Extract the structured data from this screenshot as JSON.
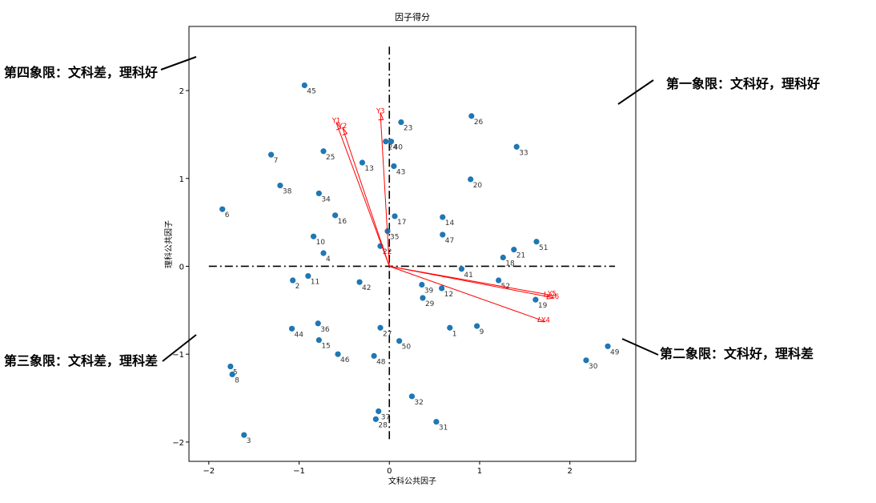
{
  "chart_data": {
    "type": "scatter",
    "title": "因子得分",
    "xlabel": "文科公共因子",
    "ylabel": "理科公共因子",
    "xlim": [
      -2.22,
      2.73
    ],
    "ylim": [
      -2.22,
      2.73
    ],
    "xticks": [
      -2,
      -1,
      0,
      1,
      2
    ],
    "yticks": [
      -2,
      -1,
      0,
      1,
      2
    ],
    "tick_labels": [
      "−2",
      "−1",
      "0",
      "1",
      "2"
    ],
    "point_color": "#1f77b4",
    "axis_color": "#000000",
    "points": [
      {
        "label": "1",
        "x": 0.67,
        "y": -0.7
      },
      {
        "label": "2",
        "x": -1.07,
        "y": -0.16
      },
      {
        "label": "3",
        "x": -1.61,
        "y": -1.92
      },
      {
        "label": "4",
        "x": -0.73,
        "y": 0.15
      },
      {
        "label": "5",
        "x": -1.76,
        "y": -1.14
      },
      {
        "label": "6",
        "x": -1.85,
        "y": 0.65
      },
      {
        "label": "7",
        "x": -1.31,
        "y": 1.27
      },
      {
        "label": "8",
        "x": -1.74,
        "y": -1.23
      },
      {
        "label": "9",
        "x": 0.97,
        "y": -0.68
      },
      {
        "label": "10",
        "x": -0.84,
        "y": 0.34
      },
      {
        "label": "11",
        "x": -0.9,
        "y": -0.11
      },
      {
        "label": "12",
        "x": 0.58,
        "y": -0.25
      },
      {
        "label": "13",
        "x": -0.3,
        "y": 1.18
      },
      {
        "label": "14",
        "x": 0.59,
        "y": 0.56
      },
      {
        "label": "15",
        "x": -0.78,
        "y": -0.84
      },
      {
        "label": "16",
        "x": -0.6,
        "y": 0.58
      },
      {
        "label": "17",
        "x": 0.06,
        "y": 0.57
      },
      {
        "label": "18",
        "x": 1.26,
        "y": 0.1
      },
      {
        "label": "19",
        "x": 1.62,
        "y": -0.38
      },
      {
        "label": "20",
        "x": 0.9,
        "y": 0.99
      },
      {
        "label": "21",
        "x": 1.38,
        "y": 0.19
      },
      {
        "label": "22",
        "x": -0.1,
        "y": 0.23
      },
      {
        "label": "23",
        "x": 0.13,
        "y": 1.64
      },
      {
        "label": "24",
        "x": -0.04,
        "y": 1.42
      },
      {
        "label": "25",
        "x": -0.73,
        "y": 1.31
      },
      {
        "label": "26",
        "x": 0.91,
        "y": 1.71
      },
      {
        "label": "27",
        "x": -0.1,
        "y": -0.7
      },
      {
        "label": "28",
        "x": -0.15,
        "y": -1.74
      },
      {
        "label": "29",
        "x": 0.37,
        "y": -0.36
      },
      {
        "label": "30",
        "x": 2.18,
        "y": -1.07
      },
      {
        "label": "31",
        "x": 0.52,
        "y": -1.77
      },
      {
        "label": "32",
        "x": 0.25,
        "y": -1.48
      },
      {
        "label": "33",
        "x": 1.41,
        "y": 1.36
      },
      {
        "label": "34",
        "x": -0.78,
        "y": 0.83
      },
      {
        "label": "35",
        "x": -0.02,
        "y": 0.4
      },
      {
        "label": "36",
        "x": -0.79,
        "y": -0.65
      },
      {
        "label": "37",
        "x": -0.12,
        "y": -1.65
      },
      {
        "label": "38",
        "x": -1.21,
        "y": 0.92
      },
      {
        "label": "39",
        "x": 0.36,
        "y": -0.21
      },
      {
        "label": "40",
        "x": 0.02,
        "y": 1.42
      },
      {
        "label": "41",
        "x": 0.8,
        "y": -0.03
      },
      {
        "label": "42",
        "x": -0.33,
        "y": -0.18
      },
      {
        "label": "43",
        "x": 0.05,
        "y": 1.14
      },
      {
        "label": "44",
        "x": -1.08,
        "y": -0.71
      },
      {
        "label": "45",
        "x": -0.94,
        "y": 2.06
      },
      {
        "label": "46",
        "x": -0.57,
        "y": -1.0
      },
      {
        "label": "47",
        "x": 0.59,
        "y": 0.36
      },
      {
        "label": "48",
        "x": -0.17,
        "y": -1.02
      },
      {
        "label": "49",
        "x": 2.42,
        "y": -0.91
      },
      {
        "label": "50",
        "x": 0.11,
        "y": -0.85
      },
      {
        "label": "51",
        "x": 1.63,
        "y": 0.28
      },
      {
        "label": "52",
        "x": 1.21,
        "y": -0.16
      }
    ],
    "vectors": [
      {
        "label": "Y1",
        "x": -0.59,
        "y": 1.64
      },
      {
        "label": "Y2",
        "x": -0.52,
        "y": 1.58
      },
      {
        "label": "Y3",
        "x": -0.1,
        "y": 1.75
      },
      {
        "label": "Y4",
        "x": 1.73,
        "y": -0.63
      },
      {
        "label": "Y5",
        "x": 1.8,
        "y": -0.33
      },
      {
        "label": "Y6",
        "x": 1.83,
        "y": -0.36
      }
    ],
    "vector_color": "#ff0000"
  },
  "annotations": {
    "q1": "第一象限：文科好，理科好",
    "q2": "第二象限：文科好，理科差",
    "q3": "第三象限：文科差，理科差",
    "q4": "第四象限：文科差，理科好"
  }
}
